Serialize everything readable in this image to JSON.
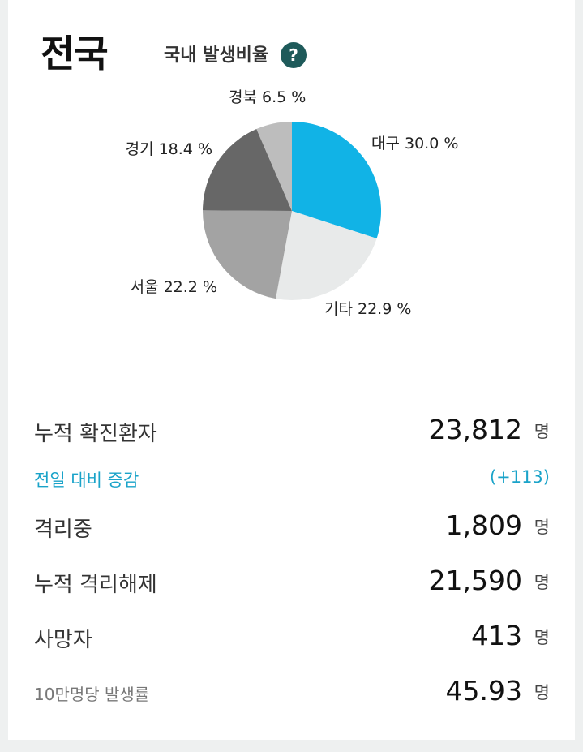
{
  "header": {
    "region_title": "전국",
    "ratio_label": "국내 발생비율",
    "help_label": "?"
  },
  "chart_data": {
    "type": "pie",
    "slices": [
      {
        "label": "대구",
        "value": 30.0,
        "display": "대구 30.0 %",
        "color": "#11b3e6"
      },
      {
        "label": "기타",
        "value": 22.9,
        "display": "기타 22.9 %",
        "color": "#e8eaea"
      },
      {
        "label": "서울",
        "value": 22.2,
        "display": "서울 22.2 %",
        "color": "#a3a3a3"
      },
      {
        "label": "경기",
        "value": 18.4,
        "display": "경기 18.4 %",
        "color": "#676767"
      },
      {
        "label": "경북",
        "value": 6.5,
        "display": "경북 6.5 %",
        "color": "#bdbdbd"
      }
    ]
  },
  "stats": {
    "cumulative_confirmed": {
      "label": "누적 확진환자",
      "value": "23,812",
      "unit": "명"
    },
    "daily_change": {
      "label": "전일 대비 증감",
      "value": "(+113)"
    },
    "isolated": {
      "label": "격리중",
      "value": "1,809",
      "unit": "명"
    },
    "released": {
      "label": "누적 격리해제",
      "value": "21,590",
      "unit": "명"
    },
    "deaths": {
      "label": "사망자",
      "value": "413",
      "unit": "명"
    },
    "incidence": {
      "label": "10만명당 발생률",
      "value": "45.93",
      "unit": "명"
    }
  }
}
